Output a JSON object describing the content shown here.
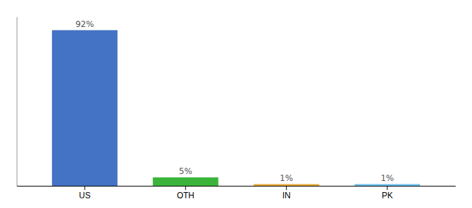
{
  "chart_data": {
    "type": "bar",
    "categories": [
      "US",
      "OTH",
      "IN",
      "PK"
    ],
    "values": [
      92,
      5,
      1,
      1
    ],
    "value_labels": [
      "92%",
      "5%",
      "1%",
      "1%"
    ],
    "colors": [
      "#4472c4",
      "#3cb43c",
      "#e8a838",
      "#6bbfed"
    ],
    "ylim": [
      0,
      100
    ],
    "grid": false,
    "data_labels": true,
    "tick_labels": "x"
  }
}
